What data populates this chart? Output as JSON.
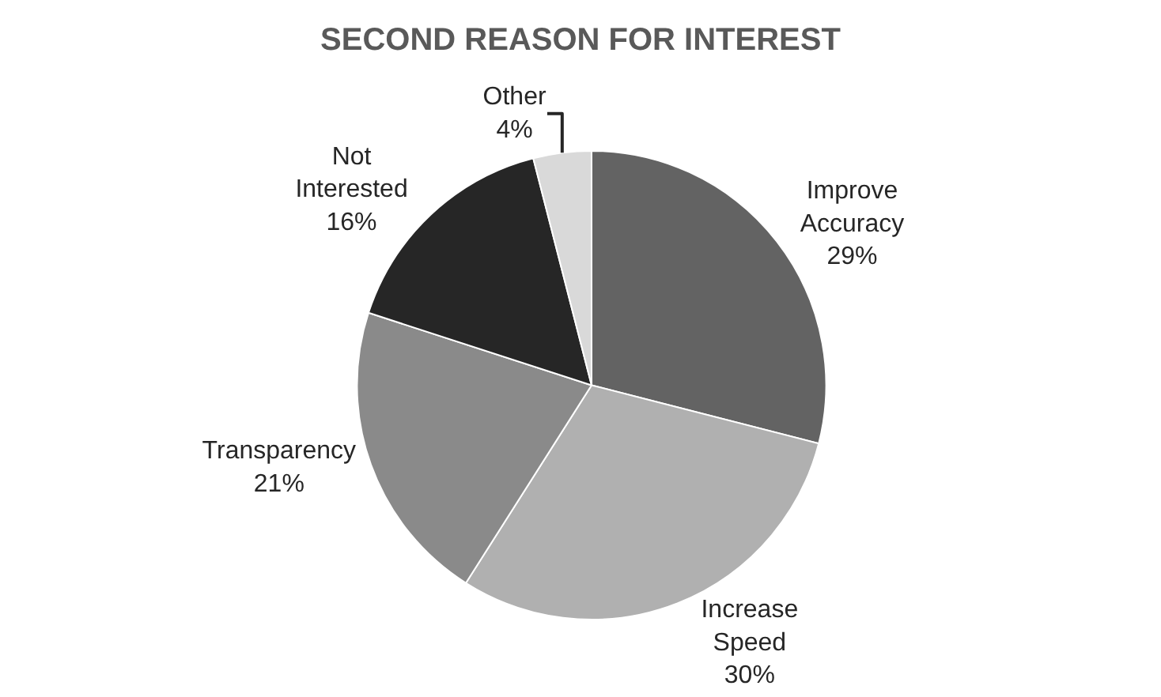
{
  "chart_data": {
    "type": "pie",
    "title": "SECOND REASON FOR INTEREST",
    "categories": [
      "Improve Accuracy",
      "Increase Speed",
      "Transparency",
      "Not Interested",
      "Other"
    ],
    "values": [
      29,
      30,
      21,
      16,
      4
    ],
    "value_labels": [
      "29%",
      "30%",
      "21%",
      "16%",
      "4%"
    ],
    "colors": [
      "#636363",
      "#b0b0b0",
      "#8a8a8a",
      "#262626",
      "#d9d9d9"
    ],
    "legend": false
  }
}
